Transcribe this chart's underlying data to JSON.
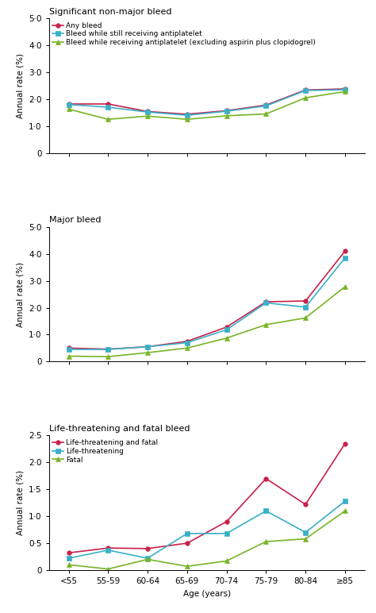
{
  "x_labels": [
    "<55",
    "55-59",
    "60-64",
    "65-69",
    "70-74",
    "75-79",
    "80-84",
    "≥85"
  ],
  "x": [
    0,
    1,
    2,
    3,
    4,
    5,
    6,
    7
  ],
  "panel1_title": "Significant non-major bleed",
  "panel1_ylabel": "Annual rate (%)",
  "panel1_ylim": [
    0,
    5.0
  ],
  "panel1_yticks": [
    0,
    1.0,
    2.0,
    3.0,
    4.0,
    5.0
  ],
  "panel1_ytick_labels": [
    "0",
    "1·0",
    "2·0",
    "3·0",
    "4·0",
    "5·0"
  ],
  "panel1_legend": [
    "Any bleed",
    "Bleed while still receiving antiplatelet",
    "Bleed while receiving antiplatelet (excluding aspirin plus clopidogrel)"
  ],
  "panel1_series1_color": "#c8214b",
  "panel1_series2_color": "#3ab0c8",
  "panel1_series3_color": "#78b428",
  "panel1_series1": [
    1.82,
    1.82,
    1.54,
    1.44,
    1.57,
    1.78,
    2.34,
    2.38
  ],
  "panel1_series2": [
    1.8,
    1.7,
    1.52,
    1.4,
    1.55,
    1.75,
    2.32,
    2.35
  ],
  "panel1_series3": [
    1.63,
    1.25,
    1.37,
    1.25,
    1.38,
    1.45,
    2.05,
    2.28
  ],
  "panel2_title": "Major bleed",
  "panel2_ylabel": "Annual rate (%)",
  "panel2_ylim": [
    0,
    5.0
  ],
  "panel2_yticks": [
    0,
    1.0,
    2.0,
    3.0,
    4.0,
    5.0
  ],
  "panel2_ytick_labels": [
    "0",
    "1·0",
    "2·0",
    "3·0",
    "4·0",
    "5·0"
  ],
  "panel2_series1_color": "#c8214b",
  "panel2_series2_color": "#3ab0c8",
  "panel2_series3_color": "#78b428",
  "panel2_series1": [
    0.5,
    0.46,
    0.55,
    0.75,
    1.28,
    2.22,
    2.25,
    4.1
  ],
  "panel2_series2": [
    0.45,
    0.45,
    0.55,
    0.7,
    1.18,
    2.18,
    2.02,
    3.85
  ],
  "panel2_series3": [
    0.2,
    0.18,
    0.33,
    0.5,
    0.87,
    1.37,
    1.62,
    2.78
  ],
  "panel3_title": "Life-threatening and fatal bleed",
  "panel3_ylabel": "Annual rate (%)",
  "panel3_ylim": [
    0,
    2.5
  ],
  "panel3_yticks": [
    0,
    0.5,
    1.0,
    1.5,
    2.0,
    2.5
  ],
  "panel3_ytick_labels": [
    "0",
    "0·5",
    "1·0",
    "1·5",
    "2·0",
    "2·5"
  ],
  "panel3_legend": [
    "Life-threatening and fatal",
    "Life-threatening",
    "Fatal"
  ],
  "panel3_series1_color": "#c8214b",
  "panel3_series2_color": "#3ab0c8",
  "panel3_series3_color": "#78b428",
  "panel3_series1": [
    0.32,
    0.41,
    0.4,
    0.5,
    0.9,
    1.7,
    1.22,
    2.35
  ],
  "panel3_series2": [
    0.22,
    0.37,
    0.22,
    0.68,
    0.68,
    1.1,
    0.7,
    1.28
  ],
  "panel3_series3": [
    0.1,
    0.02,
    0.2,
    0.07,
    0.17,
    0.53,
    0.58,
    1.1
  ],
  "xlabel": "Age (years)",
  "background_color": "#ffffff",
  "marker_size": 4,
  "line_width": 1.2
}
